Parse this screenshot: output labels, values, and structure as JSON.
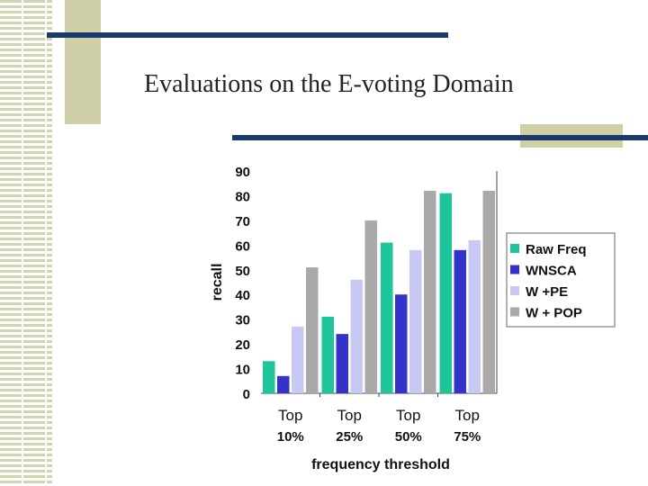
{
  "slide": {
    "title": "Evaluations  on the E-voting Domain"
  },
  "colors": {
    "accent_bar": "#1a3a6b",
    "tan": "#cfd0a7"
  },
  "chart_data": {
    "type": "bar",
    "categories": [
      [
        "Top",
        "10%"
      ],
      [
        "Top",
        "25%"
      ],
      [
        "Top",
        "50%"
      ],
      [
        "Top",
        "75%"
      ]
    ],
    "series": [
      {
        "name": "Raw Freq",
        "color": "#1ec59a",
        "values": [
          13,
          31,
          61,
          81
        ]
      },
      {
        "name": "WNSCA",
        "color": "#3333cc",
        "values": [
          7,
          24,
          40,
          58
        ]
      },
      {
        "name": "W +PE",
        "color": "#c8c8f5",
        "values": [
          27,
          46,
          58,
          62
        ]
      },
      {
        "name": "W + POP",
        "color": "#a9a9a9",
        "values": [
          51,
          70,
          82,
          82
        ]
      }
    ],
    "xlabel": "frequency threshold",
    "ylabel": "recall",
    "ylim": [
      0,
      90
    ],
    "yticks": [
      0,
      10,
      20,
      30,
      40,
      50,
      60,
      70,
      80,
      90
    ],
    "legend_position": "right"
  }
}
